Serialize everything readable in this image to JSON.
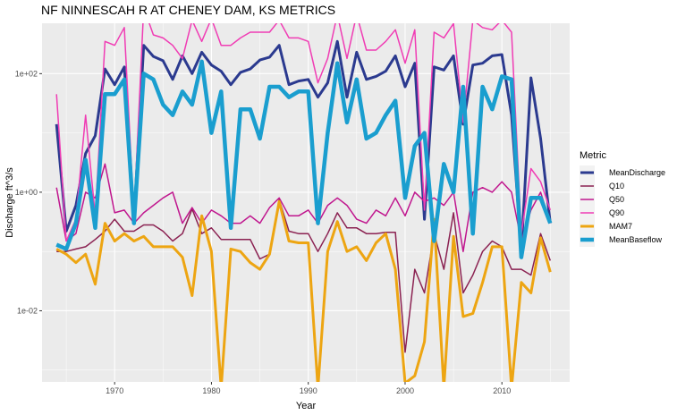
{
  "chart_data": {
    "type": "line",
    "title": "NF NINNESCAH R AT CHENEY DAM, KS  METRICS",
    "xlabel": "Year",
    "ylabel": "Discharge ft^3/s",
    "xlim": [
      1962.5,
      2017
    ],
    "ylim_log10": [
      -3.2,
      2.85
    ],
    "y_scale": "log10",
    "x_ticks": [
      1970,
      1980,
      1990,
      2000,
      2010
    ],
    "x_tick_labels": [
      "1970",
      "1980",
      "1990",
      "2000",
      "2010"
    ],
    "y_ticks": [
      0.01,
      1,
      100
    ],
    "y_tick_labels": [
      "1e-02",
      "1e+00",
      "1e+02"
    ],
    "legend_title": "Metric",
    "legend_position": "right",
    "grid": true,
    "background": "#EBEBEB",
    "x": [
      1964,
      1965,
      1966,
      1967,
      1968,
      1969,
      1970,
      1971,
      1972,
      1973,
      1974,
      1975,
      1976,
      1977,
      1978,
      1979,
      1980,
      1981,
      1982,
      1983,
      1984,
      1985,
      1986,
      1987,
      1988,
      1989,
      1990,
      1991,
      1992,
      1993,
      1994,
      1995,
      1996,
      1997,
      1998,
      1999,
      2000,
      2001,
      2002,
      2003,
      2004,
      2005,
      2006,
      2007,
      2008,
      2009,
      2010,
      2011,
      2012,
      2013,
      2014,
      2015
    ],
    "series": [
      {
        "name": "MeanDischarge",
        "color": "#2B3A8F",
        "width": 3,
        "values": [
          14,
          0.22,
          0.6,
          4.5,
          9,
          120,
          65,
          130,
          0.35,
          300,
          195,
          165,
          80,
          200,
          100,
          230,
          140,
          110,
          65,
          105,
          120,
          170,
          190,
          300,
          65,
          75,
          80,
          40,
          70,
          350,
          40,
          230,
          80,
          90,
          110,
          200,
          60,
          150,
          0.35,
          130,
          115,
          200,
          14,
          140,
          150,
          200,
          210,
          20,
          0.1,
          85,
          8,
          0.3
        ]
      },
      {
        "name": "Q10",
        "color": "#8B2252",
        "width": 1.5,
        "values": [
          0.1,
          0.1,
          0.11,
          0.12,
          0.16,
          0.22,
          0.35,
          0.22,
          0.22,
          0.28,
          0.28,
          0.22,
          0.15,
          0.2,
          0.52,
          0.2,
          0.25,
          0.16,
          0.16,
          0.16,
          0.16,
          0.075,
          0.09,
          0.75,
          0.22,
          0.2,
          0.2,
          0.1,
          0.2,
          0.45,
          0.25,
          0.25,
          0.2,
          0.2,
          0.21,
          0.21,
          0.002,
          0.05,
          0.02,
          0.2,
          0.05,
          0.45,
          0.02,
          0.04,
          0.1,
          0.15,
          0.12,
          0.05,
          0.05,
          0.04,
          0.2,
          0.07
        ]
      },
      {
        "name": "Q50",
        "color": "#C0168E",
        "width": 1.5,
        "values": [
          1.2,
          0.15,
          0.2,
          1,
          0.8,
          3,
          0.45,
          0.5,
          0.3,
          0.45,
          0.6,
          0.8,
          1,
          0.3,
          0.55,
          0.3,
          0.5,
          0.4,
          0.3,
          0.3,
          0.4,
          0.3,
          0.55,
          0.8,
          0.4,
          0.4,
          0.5,
          0.3,
          0.6,
          0.8,
          0.6,
          0.35,
          0.3,
          0.5,
          0.4,
          0.8,
          0.4,
          1,
          0.7,
          0.8,
          0.6,
          1,
          0.1,
          1,
          1.2,
          1,
          1.5,
          1,
          0.15,
          0.5,
          1,
          0.3
        ]
      },
      {
        "name": "Q90",
        "color": "#F03CB4",
        "width": 1.5,
        "values": [
          45,
          0.15,
          0.35,
          20,
          0.4,
          350,
          300,
          600,
          0.4,
          1300,
          450,
          400,
          300,
          180,
          800,
          350,
          850,
          300,
          300,
          400,
          500,
          500,
          500,
          800,
          400,
          400,
          350,
          70,
          180,
          1000,
          180,
          1000,
          250,
          250,
          350,
          550,
          150,
          550,
          0.5,
          500,
          400,
          700,
          15,
          800,
          600,
          550,
          800,
          500,
          0.2,
          2.5,
          1.5,
          0.5
        ]
      },
      {
        "name": "MAM7",
        "color": "#EDA512",
        "width": 3,
        "values": [
          0.11,
          0.09,
          0.065,
          0.09,
          0.028,
          0.3,
          0.15,
          0.2,
          0.15,
          0.18,
          0.12,
          0.12,
          0.12,
          0.08,
          0.018,
          0.4,
          0.1,
          0.0005,
          0.11,
          0.1,
          0.065,
          0.05,
          0.09,
          0.7,
          0.15,
          0.14,
          0.14,
          0.0005,
          0.1,
          0.32,
          0.1,
          0.12,
          0.07,
          0.14,
          0.2,
          0.05,
          0.0006,
          0.0008,
          0.003,
          0.35,
          0.0005,
          0.18,
          0.008,
          0.009,
          0.03,
          0.12,
          0.12,
          0.0005,
          0.03,
          0.02,
          0.17,
          0.045
        ]
      },
      {
        "name": "MeanBaseflow",
        "color": "#1A9ECF",
        "width": 4.5,
        "values": [
          0.13,
          0.11,
          0.3,
          3.5,
          0.25,
          45,
          45,
          80,
          0.3,
          100,
          80,
          30,
          20,
          50,
          30,
          160,
          10,
          50,
          0.25,
          25,
          25,
          8,
          60,
          60,
          40,
          50,
          50,
          0.3,
          10,
          150,
          15,
          80,
          8,
          10,
          20,
          35,
          0.8,
          6,
          10,
          0.15,
          3,
          1,
          60,
          0.2,
          60,
          25,
          90,
          80,
          0.08,
          0.8,
          0.8,
          0.3
        ]
      }
    ]
  }
}
